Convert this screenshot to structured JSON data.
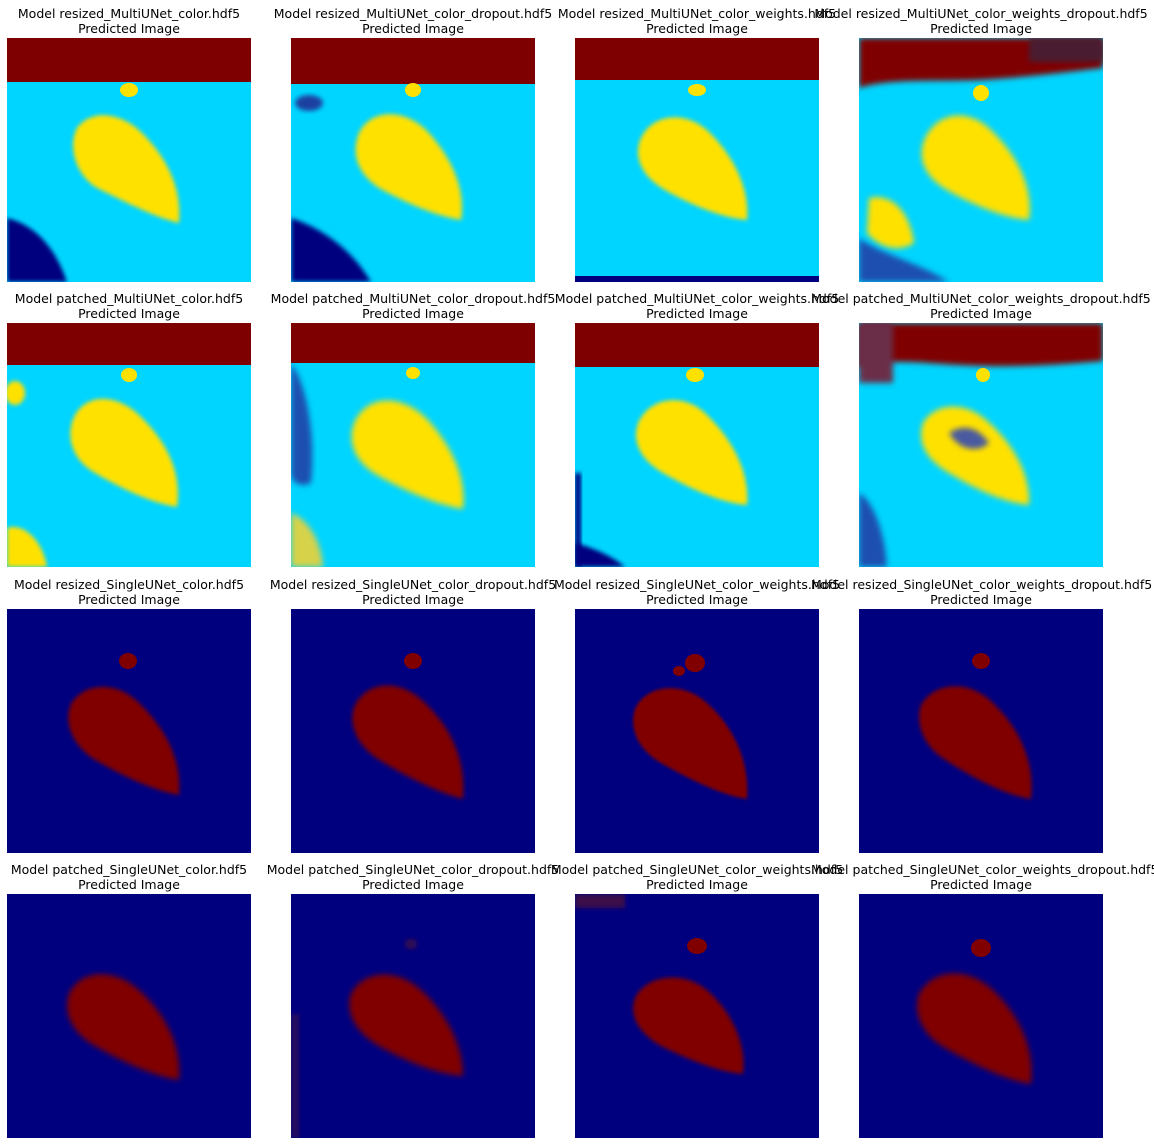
{
  "panels": [
    {
      "title": "Model resized_MultiUNet_color.hdf5",
      "subtitle": "Predicted Image"
    },
    {
      "title": "Model resized_MultiUNet_color_dropout.hdf5",
      "subtitle": "Predicted Image"
    },
    {
      "title": "Model resized_MultiUNet_color_weights.hdf5",
      "subtitle": "Predicted Image"
    },
    {
      "title": "Model resized_MultiUNet_color_weights_dropout.hdf5",
      "subtitle": "Predicted Image"
    },
    {
      "title": "Model patched_MultiUNet_color.hdf5",
      "subtitle": "Predicted Image"
    },
    {
      "title": "Model patched_MultiUNet_color_dropout.hdf5",
      "subtitle": "Predicted Image"
    },
    {
      "title": "Model patched_MultiUNet_color_weights.hdf5",
      "subtitle": "Predicted Image"
    },
    {
      "title": "Model patched_MultiUNet_color_weights_dropout.hdf5",
      "subtitle": "Predicted Image"
    },
    {
      "title": "Model resized_SingleUNet_color.hdf5",
      "subtitle": "Predicted Image"
    },
    {
      "title": "Model resized_SingleUNet_color_dropout.hdf5",
      "subtitle": "Predicted Image"
    },
    {
      "title": "Model resized_SingleUNet_color_weights.hdf5",
      "subtitle": "Predicted Image"
    },
    {
      "title": "Model resized_SingleUNet_color_weights_dropout.hdf5",
      "subtitle": "Predicted Image"
    },
    {
      "title": "Model patched_SingleUNet_color.hdf5",
      "subtitle": "Predicted Image"
    },
    {
      "title": "Model patched_SingleUNet_color_dropout.hdf5",
      "subtitle": "Predicted Image"
    },
    {
      "title": "Model patched_SingleUNet_color_weights.hdf5",
      "subtitle": "Predicted Image"
    },
    {
      "title": "Model patched_SingleUNet_color_weights_dropout.hdf5",
      "subtitle": "Predicted Image"
    }
  ],
  "colors": {
    "background_dark_blue": "#00007f",
    "sky_dark_red": "#7f0000",
    "water_cyan": "#00d5ff",
    "object_yellow": "#ffe100",
    "object_dark_red": "#800000"
  }
}
